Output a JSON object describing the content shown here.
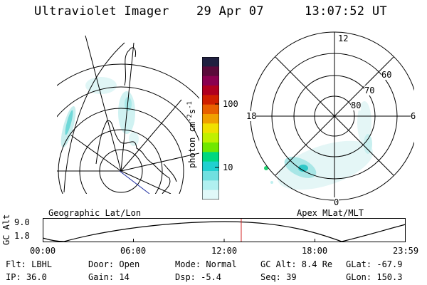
{
  "header": {
    "title": "Ultraviolet Imager",
    "date": "29 Apr 07",
    "time": "13:07:52 UT"
  },
  "colorbar": {
    "units": "photon cm",
    "units_exp1": "-2",
    "units_mid": "s",
    "units_exp2": "-1",
    "tick_100": "100",
    "tick_10": "10",
    "colors": [
      "#202040",
      "#5a0a3a",
      "#8a0050",
      "#b00020",
      "#d02000",
      "#e86000",
      "#f0a000",
      "#f0e000",
      "#c0f000",
      "#70e800",
      "#00d880",
      "#20d0d0",
      "#70e0e0",
      "#b0f0f0",
      "#e0f8f8"
    ]
  },
  "left_panel": {
    "label": "Geographic Lat/Lon"
  },
  "right_panel": {
    "label": "Apex MLat/MLT",
    "mlt_12": "12",
    "mlt_18": "18",
    "mlt_6": "6",
    "mlt_0": "0",
    "lat_60": "60",
    "lat_70": "70",
    "lat_80": "80"
  },
  "altitude_plot": {
    "ylabel": "GC Alt",
    "ytick_top": "9.0",
    "ytick_bottom": "1.8",
    "xticks": [
      "00:00",
      "06:00",
      "12:00",
      "18:00",
      "23:59"
    ],
    "current_time_fraction": 0.547
  },
  "info": {
    "filter": "Flt: LBHL",
    "ip": "IP: 36.0",
    "door": "Door: Open",
    "gain": "Gain: 14",
    "mode": "Mode: Normal",
    "dsp": "Dsp:   -5.4",
    "gc_alt": "GC Alt: 8.4 Re",
    "seq": "Seq: 39",
    "glat": "GLat: -67.9",
    "glon": "GLon: 150.3"
  }
}
